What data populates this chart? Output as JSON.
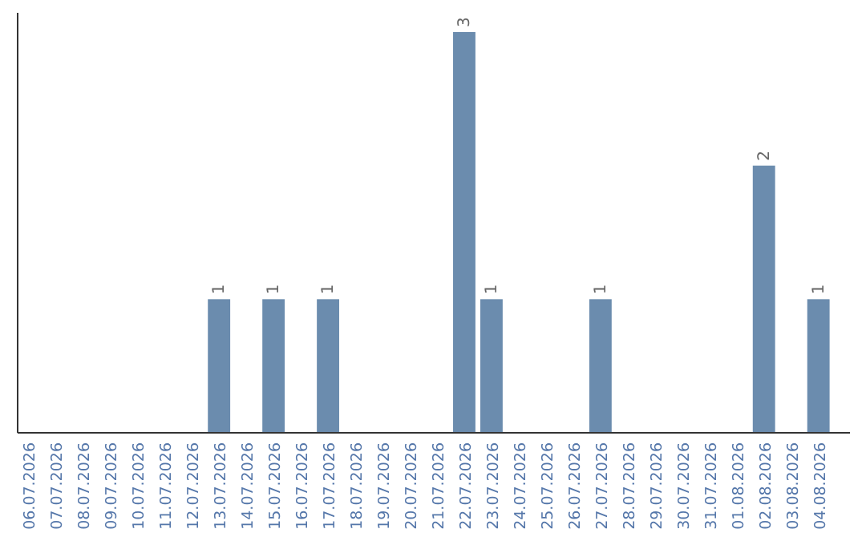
{
  "chart_data": {
    "type": "bar",
    "categories": [
      "06.07.2026",
      "07.07.2026",
      "08.07.2026",
      "09.07.2026",
      "10.07.2026",
      "11.07.2026",
      "12.07.2026",
      "13.07.2026",
      "14.07.2026",
      "15.07.2026",
      "16.07.2026",
      "17.07.2026",
      "18.07.2026",
      "19.07.2026",
      "20.07.2026",
      "21.07.2026",
      "22.07.2026",
      "23.07.2026",
      "24.07.2026",
      "25.07.2026",
      "26.07.2026",
      "27.07.2026",
      "28.07.2026",
      "29.07.2026",
      "30.07.2026",
      "31.07.2026",
      "01.08.2026",
      "02.08.2026",
      "03.08.2026",
      "04.08.2026"
    ],
    "values": [
      0,
      0,
      0,
      0,
      0,
      0,
      0,
      1,
      0,
      1,
      0,
      1,
      0,
      0,
      0,
      0,
      3,
      1,
      0,
      0,
      0,
      1,
      0,
      0,
      0,
      0,
      0,
      2,
      0,
      1
    ],
    "value_labels": [
      null,
      null,
      null,
      null,
      null,
      null,
      null,
      "1",
      null,
      "1",
      null,
      "1",
      null,
      null,
      null,
      null,
      "3",
      "1",
      null,
      null,
      null,
      "1",
      null,
      null,
      null,
      null,
      null,
      "2",
      null,
      "1"
    ],
    "color": "#6b8cae",
    "tick_labels": "x"
  }
}
